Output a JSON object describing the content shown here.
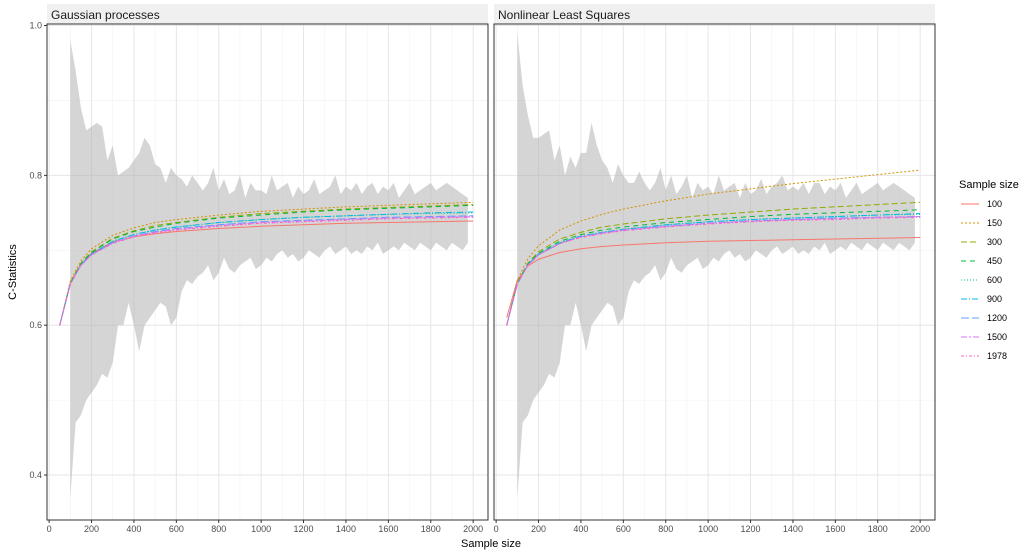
{
  "chart_data": {
    "type": "line",
    "xlabel": "Sample size",
    "ylabel": "C-Statistics",
    "xlim": [
      -10,
      2070
    ],
    "ylim": [
      0.34,
      1.002
    ],
    "x_ticks": [
      0,
      200,
      400,
      600,
      800,
      1000,
      1200,
      1400,
      1600,
      1800,
      2000
    ],
    "x_tick_labels": [
      "0",
      "200",
      "400",
      "600",
      "800",
      "1000",
      "1200",
      "1400",
      "1600",
      "1800",
      "2000"
    ],
    "y_ticks": [
      0.4,
      0.6,
      0.8,
      1.0
    ],
    "y_tick_labels": [
      "0.4",
      "0.6",
      "0.8",
      "1.0"
    ],
    "grid": true,
    "legend": {
      "title": "Sample size",
      "placement": "right",
      "entries": [
        "100",
        "150",
        "300",
        "450",
        "600",
        "900",
        "1200",
        "1500",
        "1978"
      ]
    },
    "series_style": [
      {
        "name": "100",
        "color": "#F8766D",
        "dash": ""
      },
      {
        "name": "150",
        "color": "#D39200",
        "dash": "2,2"
      },
      {
        "name": "300",
        "color": "#93AA00",
        "dash": "6,3"
      },
      {
        "name": "450",
        "color": "#00BA38",
        "dash": "5,4"
      },
      {
        "name": "600",
        "color": "#00C19F",
        "dash": "1,2"
      },
      {
        "name": "900",
        "color": "#00B9E3",
        "dash": "6,2,1,2"
      },
      {
        "name": "1200",
        "color": "#619CFF",
        "dash": "8,3"
      },
      {
        "name": "1500",
        "color": "#DB72FB",
        "dash": "6,2,2,2"
      },
      {
        "name": "1978",
        "color": "#FF61C3",
        "dash": "3,2,1,2"
      }
    ],
    "panels": [
      {
        "strip": "Gaussian processes",
        "band": {
          "x": [
            100,
            125,
            150,
            175,
            200,
            225,
            250,
            275,
            300,
            325,
            350,
            375,
            400,
            425,
            450,
            475,
            500,
            525,
            550,
            575,
            600,
            625,
            650,
            675,
            700,
            725,
            750,
            775,
            800,
            825,
            850,
            875,
            900,
            925,
            950,
            975,
            1000,
            1025,
            1050,
            1075,
            1100,
            1125,
            1150,
            1175,
            1200,
            1225,
            1250,
            1275,
            1300,
            1325,
            1350,
            1375,
            1400,
            1425,
            1450,
            1475,
            1500,
            1525,
            1550,
            1575,
            1600,
            1625,
            1650,
            1675,
            1700,
            1725,
            1750,
            1775,
            1800,
            1825,
            1850,
            1875,
            1900,
            1925,
            1950,
            1975
          ],
          "upper": [
            0.98,
            0.94,
            0.89,
            0.86,
            0.865,
            0.87,
            0.865,
            0.82,
            0.84,
            0.8,
            0.805,
            0.81,
            0.82,
            0.83,
            0.85,
            0.84,
            0.815,
            0.81,
            0.79,
            0.81,
            0.8,
            0.795,
            0.785,
            0.8,
            0.79,
            0.78,
            0.79,
            0.81,
            0.78,
            0.795,
            0.775,
            0.78,
            0.8,
            0.77,
            0.79,
            0.78,
            0.78,
            0.775,
            0.8,
            0.78,
            0.785,
            0.79,
            0.77,
            0.785,
            0.775,
            0.78,
            0.795,
            0.775,
            0.78,
            0.785,
            0.8,
            0.775,
            0.785,
            0.78,
            0.79,
            0.775,
            0.785,
            0.79,
            0.775,
            0.785,
            0.78,
            0.79,
            0.77,
            0.78,
            0.79,
            0.775,
            0.78,
            0.785,
            0.79,
            0.78,
            0.785,
            0.79,
            0.785,
            0.78,
            0.775,
            0.77
          ],
          "lower": [
            0.37,
            0.47,
            0.48,
            0.5,
            0.51,
            0.52,
            0.535,
            0.53,
            0.55,
            0.6,
            0.6,
            0.63,
            0.6,
            0.565,
            0.6,
            0.61,
            0.62,
            0.63,
            0.625,
            0.6,
            0.61,
            0.645,
            0.66,
            0.655,
            0.665,
            0.67,
            0.68,
            0.66,
            0.67,
            0.69,
            0.675,
            0.67,
            0.68,
            0.685,
            0.69,
            0.675,
            0.68,
            0.69,
            0.685,
            0.695,
            0.7,
            0.69,
            0.695,
            0.685,
            0.69,
            0.7,
            0.695,
            0.69,
            0.7,
            0.705,
            0.695,
            0.7,
            0.705,
            0.695,
            0.7,
            0.695,
            0.705,
            0.7,
            0.71,
            0.695,
            0.7,
            0.705,
            0.7,
            0.71,
            0.705,
            0.7,
            0.71,
            0.705,
            0.7,
            0.71,
            0.705,
            0.7,
            0.71,
            0.705,
            0.7,
            0.71
          ]
        },
        "curve_x": [
          50,
          100,
          150,
          200,
          300,
          400,
          500,
          600,
          800,
          1000,
          1200,
          1400,
          1600,
          1800,
          2000
        ],
        "series": [
          {
            "name": "100",
            "values": [
              0.6,
              0.656,
              0.681,
              0.696,
              0.711,
              0.718,
              0.722,
              0.725,
              0.729,
              0.732,
              0.734,
              0.736,
              0.737,
              0.738,
              0.739
            ]
          },
          {
            "name": "150",
            "values": [
              0.6,
              0.659,
              0.686,
              0.702,
              0.72,
              0.73,
              0.737,
              0.741,
              0.747,
              0.752,
              0.755,
              0.758,
              0.76,
              0.762,
              0.764
            ]
          },
          {
            "name": "300",
            "values": [
              0.6,
              0.657,
              0.683,
              0.698,
              0.716,
              0.726,
              0.733,
              0.737,
              0.744,
              0.749,
              0.752,
              0.755,
              0.757,
              0.759,
              0.761
            ]
          },
          {
            "name": "450",
            "values": [
              0.6,
              0.656,
              0.682,
              0.697,
              0.715,
              0.725,
              0.731,
              0.736,
              0.743,
              0.747,
              0.751,
              0.754,
              0.756,
              0.758,
              0.76
            ]
          },
          {
            "name": "600",
            "values": [
              0.6,
              0.655,
              0.681,
              0.695,
              0.712,
              0.721,
              0.727,
              0.731,
              0.737,
              0.741,
              0.744,
              0.746,
              0.748,
              0.749,
              0.75
            ]
          },
          {
            "name": "900",
            "values": [
              0.6,
              0.655,
              0.681,
              0.695,
              0.712,
              0.721,
              0.727,
              0.731,
              0.737,
              0.741,
              0.744,
              0.746,
              0.748,
              0.75,
              0.751
            ]
          },
          {
            "name": "1200",
            "values": [
              0.6,
              0.655,
              0.68,
              0.694,
              0.71,
              0.719,
              0.725,
              0.729,
              0.734,
              0.738,
              0.74,
              0.742,
              0.744,
              0.745,
              0.746
            ]
          },
          {
            "name": "1500",
            "values": [
              0.6,
              0.655,
              0.68,
              0.694,
              0.71,
              0.719,
              0.724,
              0.728,
              0.733,
              0.737,
              0.739,
              0.741,
              0.743,
              0.744,
              0.745
            ]
          },
          {
            "name": "1978",
            "values": [
              0.6,
              0.655,
              0.68,
              0.694,
              0.709,
              0.718,
              0.723,
              0.727,
              0.732,
              0.736,
              0.738,
              0.74,
              0.742,
              0.743,
              0.744
            ]
          }
        ]
      },
      {
        "strip": "Nonlinear Least Squares",
        "band": {
          "x": [
            100,
            125,
            150,
            175,
            200,
            225,
            250,
            275,
            300,
            325,
            350,
            375,
            400,
            425,
            450,
            475,
            500,
            525,
            550,
            575,
            600,
            625,
            650,
            675,
            700,
            725,
            750,
            775,
            800,
            825,
            850,
            875,
            900,
            925,
            950,
            975,
            1000,
            1025,
            1050,
            1075,
            1100,
            1125,
            1150,
            1175,
            1200,
            1225,
            1250,
            1275,
            1300,
            1325,
            1350,
            1375,
            1400,
            1425,
            1450,
            1475,
            1500,
            1525,
            1550,
            1575,
            1600,
            1625,
            1650,
            1675,
            1700,
            1725,
            1750,
            1775,
            1800,
            1825,
            1850,
            1875,
            1900,
            1925,
            1950,
            1975
          ],
          "upper": [
            0.99,
            0.92,
            0.88,
            0.85,
            0.85,
            0.855,
            0.86,
            0.82,
            0.84,
            0.8,
            0.825,
            0.81,
            0.83,
            0.83,
            0.87,
            0.84,
            0.82,
            0.81,
            0.79,
            0.815,
            0.8,
            0.79,
            0.79,
            0.805,
            0.79,
            0.78,
            0.79,
            0.81,
            0.78,
            0.8,
            0.775,
            0.785,
            0.8,
            0.77,
            0.79,
            0.78,
            0.785,
            0.775,
            0.8,
            0.78,
            0.785,
            0.79,
            0.77,
            0.79,
            0.775,
            0.78,
            0.795,
            0.775,
            0.785,
            0.79,
            0.8,
            0.78,
            0.785,
            0.78,
            0.79,
            0.775,
            0.79,
            0.79,
            0.775,
            0.785,
            0.78,
            0.79,
            0.77,
            0.78,
            0.79,
            0.775,
            0.78,
            0.785,
            0.79,
            0.78,
            0.785,
            0.79,
            0.785,
            0.78,
            0.775,
            0.77
          ],
          "lower": [
            0.37,
            0.47,
            0.48,
            0.5,
            0.51,
            0.52,
            0.535,
            0.53,
            0.55,
            0.6,
            0.6,
            0.63,
            0.6,
            0.565,
            0.6,
            0.61,
            0.62,
            0.63,
            0.625,
            0.6,
            0.61,
            0.645,
            0.66,
            0.655,
            0.665,
            0.67,
            0.68,
            0.66,
            0.67,
            0.69,
            0.675,
            0.67,
            0.68,
            0.685,
            0.69,
            0.675,
            0.68,
            0.69,
            0.685,
            0.695,
            0.7,
            0.69,
            0.695,
            0.685,
            0.69,
            0.7,
            0.695,
            0.69,
            0.7,
            0.705,
            0.695,
            0.7,
            0.705,
            0.695,
            0.7,
            0.695,
            0.705,
            0.7,
            0.71,
            0.695,
            0.7,
            0.705,
            0.7,
            0.71,
            0.705,
            0.7,
            0.71,
            0.705,
            0.7,
            0.71,
            0.705,
            0.7,
            0.71,
            0.705,
            0.7,
            0.71
          ]
        },
        "curve_x": [
          50,
          100,
          150,
          200,
          300,
          400,
          500,
          600,
          800,
          1000,
          1200,
          1400,
          1600,
          1800,
          2000
        ],
        "series": [
          {
            "name": "100",
            "values": [
              0.61,
              0.66,
              0.679,
              0.688,
              0.697,
              0.702,
              0.705,
              0.707,
              0.71,
              0.712,
              0.713,
              0.714,
              0.715,
              0.716,
              0.717
            ]
          },
          {
            "name": "150",
            "values": [
              0.6,
              0.66,
              0.689,
              0.706,
              0.727,
              0.739,
              0.748,
              0.755,
              0.766,
              0.775,
              0.782,
              0.789,
              0.795,
              0.801,
              0.807
            ]
          },
          {
            "name": "300",
            "values": [
              0.6,
              0.657,
              0.683,
              0.698,
              0.715,
              0.724,
              0.731,
              0.735,
              0.742,
              0.747,
              0.751,
              0.755,
              0.758,
              0.761,
              0.764
            ]
          },
          {
            "name": "450",
            "values": [
              0.6,
              0.656,
              0.682,
              0.696,
              0.712,
              0.721,
              0.727,
              0.731,
              0.737,
              0.741,
              0.745,
              0.748,
              0.75,
              0.752,
              0.754
            ]
          },
          {
            "name": "600",
            "values": [
              0.6,
              0.655,
              0.681,
              0.695,
              0.71,
              0.719,
              0.724,
              0.728,
              0.734,
              0.738,
              0.741,
              0.743,
              0.745,
              0.747,
              0.748
            ]
          },
          {
            "name": "900",
            "values": [
              0.6,
              0.655,
              0.681,
              0.695,
              0.71,
              0.719,
              0.724,
              0.728,
              0.734,
              0.738,
              0.741,
              0.743,
              0.745,
              0.747,
              0.749
            ]
          },
          {
            "name": "1200",
            "values": [
              0.6,
              0.655,
              0.68,
              0.694,
              0.709,
              0.718,
              0.723,
              0.727,
              0.732,
              0.736,
              0.739,
              0.741,
              0.743,
              0.744,
              0.745
            ]
          },
          {
            "name": "1500",
            "values": [
              0.6,
              0.655,
              0.68,
              0.694,
              0.709,
              0.718,
              0.723,
              0.727,
              0.732,
              0.736,
              0.739,
              0.741,
              0.742,
              0.744,
              0.745
            ]
          },
          {
            "name": "1978",
            "values": [
              0.6,
              0.655,
              0.68,
              0.694,
              0.709,
              0.717,
              0.722,
              0.726,
              0.731,
              0.735,
              0.738,
              0.74,
              0.741,
              0.743,
              0.744
            ]
          }
        ]
      }
    ]
  }
}
